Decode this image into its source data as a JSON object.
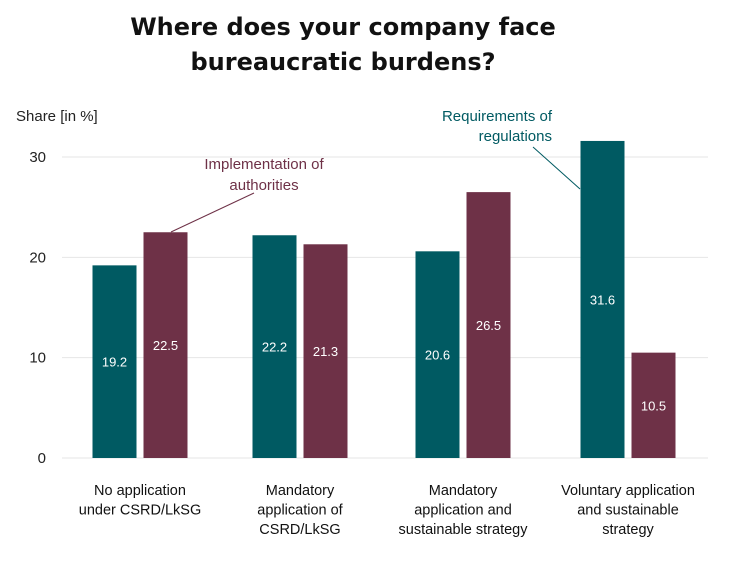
{
  "chart_data": {
    "type": "bar",
    "title_lines": [
      "Where does your company face",
      "bureaucratic burdens?"
    ],
    "ylabel": "Share [in %]",
    "ylim": [
      0,
      30
    ],
    "yticks": [
      0,
      10,
      20,
      30
    ],
    "grid": true,
    "categories": [
      [
        "No application",
        "under CSRD/LkSG"
      ],
      [
        "Mandatory",
        "application of",
        "CSRD/LkSG"
      ],
      [
        "Mandatory",
        "application and",
        "sustainable strategy"
      ],
      [
        "Voluntary application",
        "and sustainable",
        "strategy"
      ]
    ],
    "series": [
      {
        "name": "Requirements of regulations",
        "color": "#005a62",
        "values": [
          19.2,
          22.2,
          20.6,
          31.6
        ]
      },
      {
        "name": "Implementation of authorities",
        "color": "#6e3147",
        "values": [
          22.5,
          21.3,
          26.5,
          10.5
        ]
      }
    ],
    "annotations": [
      {
        "lines": [
          "Implementation of",
          "authorities"
        ],
        "series": 1,
        "category": 0,
        "color": "#6e3147"
      },
      {
        "lines": [
          "Requirements of",
          "regulations"
        ],
        "series": 0,
        "category": 3,
        "color": "#005a62"
      }
    ]
  }
}
